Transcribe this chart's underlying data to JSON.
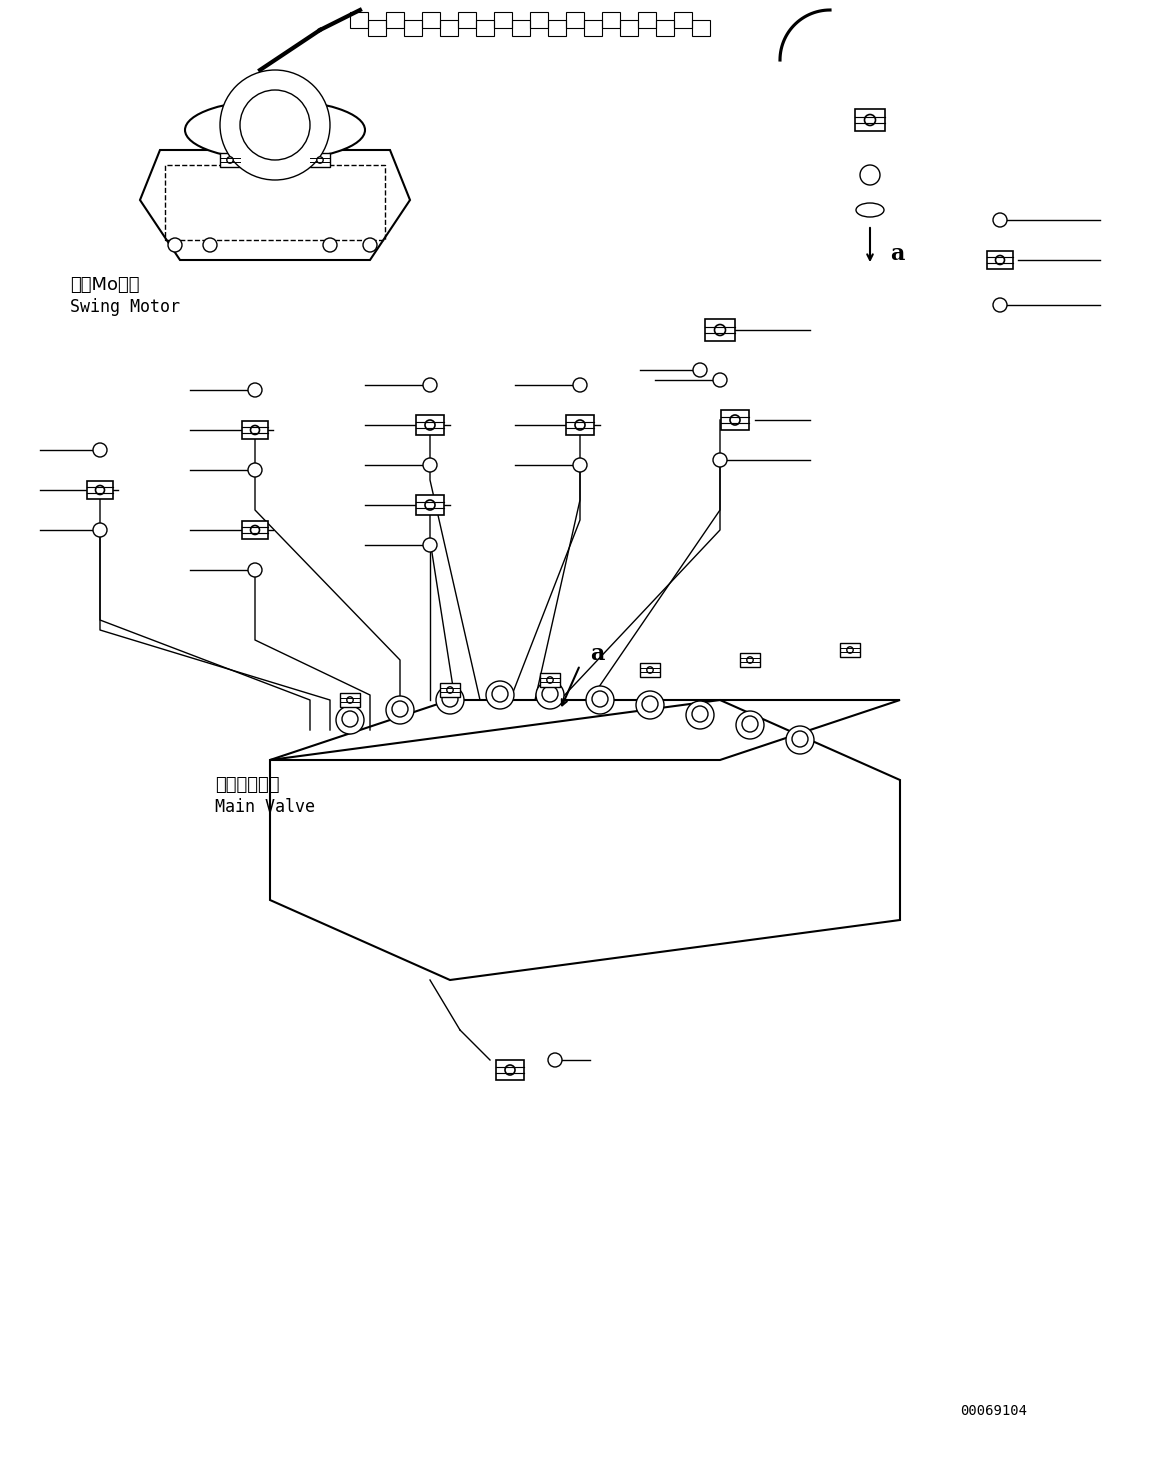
{
  "background_color": "#ffffff",
  "line_color": "#000000",
  "text_color": "#000000",
  "figsize": [
    11.63,
    14.6
  ],
  "dpi": 100,
  "swing_motor_label_jp": "旋回Moータ",
  "swing_motor_label_en": "Swing Motor",
  "main_valve_label_jp": "メインバルブ",
  "main_valve_label_en": "Main Valve",
  "label_a": "a",
  "part_id": "00069104"
}
